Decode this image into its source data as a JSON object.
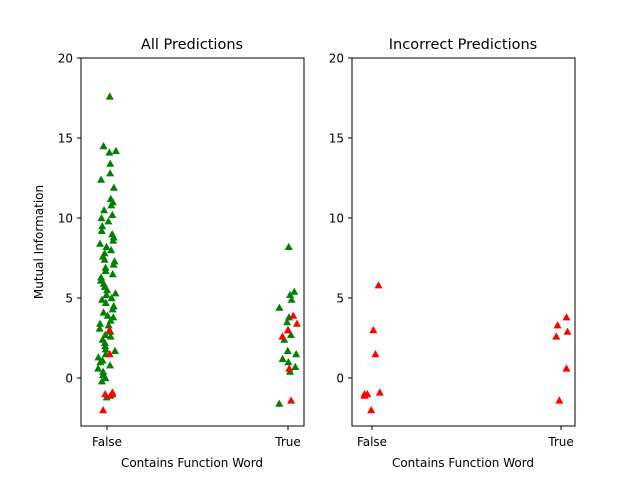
{
  "figure": {
    "background": "#ffffff",
    "marker_colors": {
      "correct": "#008000",
      "incorrect": "#ff0000"
    }
  },
  "chart_data": [
    {
      "type": "scatter",
      "title": "All Predictions",
      "xlabel": "Contains Function Word",
      "ylabel": "Mutual Information",
      "categories": [
        "False",
        "True"
      ],
      "ylim": [
        -3,
        20
      ],
      "yticks": [
        0,
        5,
        10,
        15,
        20
      ],
      "grid": false,
      "legend": "none",
      "marker": "triangle-up",
      "series": [
        {
          "color": "#008000",
          "points": [
            {
              "x": "False",
              "y": 17.6
            },
            {
              "x": "False",
              "y": 14.5
            },
            {
              "x": "False",
              "y": 14.1
            },
            {
              "x": "False",
              "y": 14.2
            },
            {
              "x": "False",
              "y": 13.4
            },
            {
              "x": "False",
              "y": 12.8
            },
            {
              "x": "False",
              "y": 12.4
            },
            {
              "x": "False",
              "y": 11.9
            },
            {
              "x": "False",
              "y": 11.2
            },
            {
              "x": "False",
              "y": 11.0
            },
            {
              "x": "False",
              "y": 10.8
            },
            {
              "x": "False",
              "y": 10.5
            },
            {
              "x": "False",
              "y": 10.2
            },
            {
              "x": "False",
              "y": 10.0
            },
            {
              "x": "False",
              "y": 9.8
            },
            {
              "x": "False",
              "y": 9.5
            },
            {
              "x": "False",
              "y": 9.2
            },
            {
              "x": "False",
              "y": 9.0
            },
            {
              "x": "False",
              "y": 8.8
            },
            {
              "x": "False",
              "y": 8.6
            },
            {
              "x": "False",
              "y": 8.4
            },
            {
              "x": "False",
              "y": 8.2
            },
            {
              "x": "False",
              "y": 8.0
            },
            {
              "x": "False",
              "y": 7.8
            },
            {
              "x": "False",
              "y": 7.6
            },
            {
              "x": "False",
              "y": 7.4
            },
            {
              "x": "False",
              "y": 7.3
            },
            {
              "x": "False",
              "y": 7.1
            },
            {
              "x": "False",
              "y": 6.9
            },
            {
              "x": "False",
              "y": 6.7
            },
            {
              "x": "False",
              "y": 6.5
            },
            {
              "x": "False",
              "y": 6.3
            },
            {
              "x": "False",
              "y": 6.1
            },
            {
              "x": "False",
              "y": 5.9
            },
            {
              "x": "False",
              "y": 5.7
            },
            {
              "x": "False",
              "y": 5.5
            },
            {
              "x": "False",
              "y": 5.3
            },
            {
              "x": "False",
              "y": 5.2
            },
            {
              "x": "False",
              "y": 5.0
            },
            {
              "x": "False",
              "y": 4.9
            },
            {
              "x": "False",
              "y": 4.7
            },
            {
              "x": "False",
              "y": 4.5
            },
            {
              "x": "False",
              "y": 4.3
            },
            {
              "x": "False",
              "y": 4.1
            },
            {
              "x": "False",
              "y": 3.9
            },
            {
              "x": "False",
              "y": 3.8
            },
            {
              "x": "False",
              "y": 3.6
            },
            {
              "x": "False",
              "y": 3.4
            },
            {
              "x": "False",
              "y": 3.3
            },
            {
              "x": "False",
              "y": 3.1
            },
            {
              "x": "False",
              "y": 2.9
            },
            {
              "x": "False",
              "y": 2.7
            },
            {
              "x": "False",
              "y": 2.6
            },
            {
              "x": "False",
              "y": 2.4
            },
            {
              "x": "False",
              "y": 2.2
            },
            {
              "x": "False",
              "y": 2.0
            },
            {
              "x": "False",
              "y": 1.8
            },
            {
              "x": "False",
              "y": 1.7
            },
            {
              "x": "False",
              "y": 1.5
            },
            {
              "x": "False",
              "y": 1.3
            },
            {
              "x": "False",
              "y": 1.1
            },
            {
              "x": "False",
              "y": 1.0
            },
            {
              "x": "False",
              "y": 0.8
            },
            {
              "x": "False",
              "y": 0.6
            },
            {
              "x": "False",
              "y": 0.4
            },
            {
              "x": "False",
              "y": 0.2
            },
            {
              "x": "False",
              "y": 0.0
            },
            {
              "x": "False",
              "y": -0.2
            },
            {
              "x": "False",
              "y": -1.0
            },
            {
              "x": "False",
              "y": -1.2
            },
            {
              "x": "True",
              "y": 8.2
            },
            {
              "x": "True",
              "y": 5.4
            },
            {
              "x": "True",
              "y": 5.2
            },
            {
              "x": "True",
              "y": 4.9
            },
            {
              "x": "True",
              "y": 4.4
            },
            {
              "x": "True",
              "y": 3.8
            },
            {
              "x": "True",
              "y": 3.5
            },
            {
              "x": "True",
              "y": 3.0
            },
            {
              "x": "True",
              "y": 2.7
            },
            {
              "x": "True",
              "y": 2.4
            },
            {
              "x": "True",
              "y": 1.7
            },
            {
              "x": "True",
              "y": 1.5
            },
            {
              "x": "True",
              "y": 1.2
            },
            {
              "x": "True",
              "y": 1.0
            },
            {
              "x": "True",
              "y": 0.7
            },
            {
              "x": "True",
              "y": 0.4
            },
            {
              "x": "True",
              "y": -1.6
            }
          ]
        },
        {
          "color": "#ff0000",
          "points": [
            {
              "x": "False",
              "y": 3.0
            },
            {
              "x": "False",
              "y": 1.5
            },
            {
              "x": "False",
              "y": -1.0
            },
            {
              "x": "False",
              "y": -0.9
            },
            {
              "x": "False",
              "y": -1.1
            },
            {
              "x": "False",
              "y": -2.0
            },
            {
              "x": "True",
              "y": 3.9
            },
            {
              "x": "True",
              "y": 3.4
            },
            {
              "x": "True",
              "y": 3.0
            },
            {
              "x": "True",
              "y": 2.6
            },
            {
              "x": "True",
              "y": 0.6
            },
            {
              "x": "True",
              "y": -1.4
            }
          ]
        }
      ]
    },
    {
      "type": "scatter",
      "title": "Incorrect Predictions",
      "xlabel": "Contains Function Word",
      "ylabel": "",
      "categories": [
        "False",
        "True"
      ],
      "ylim": [
        -3,
        20
      ],
      "yticks": [
        0,
        5,
        10,
        15,
        20
      ],
      "grid": false,
      "legend": "none",
      "marker": "triangle-up",
      "series": [
        {
          "color": "#ff0000",
          "points": [
            {
              "x": "False",
              "y": 5.8
            },
            {
              "x": "False",
              "y": 3.0
            },
            {
              "x": "False",
              "y": 1.5
            },
            {
              "x": "False",
              "y": -1.0
            },
            {
              "x": "False",
              "y": -0.9
            },
            {
              "x": "False",
              "y": -1.1
            },
            {
              "x": "False",
              "y": -1.0
            },
            {
              "x": "False",
              "y": -2.0
            },
            {
              "x": "True",
              "y": 3.8
            },
            {
              "x": "True",
              "y": 3.3
            },
            {
              "x": "True",
              "y": 2.9
            },
            {
              "x": "True",
              "y": 2.6
            },
            {
              "x": "True",
              "y": 0.6
            },
            {
              "x": "True",
              "y": -1.4
            }
          ]
        }
      ]
    }
  ]
}
